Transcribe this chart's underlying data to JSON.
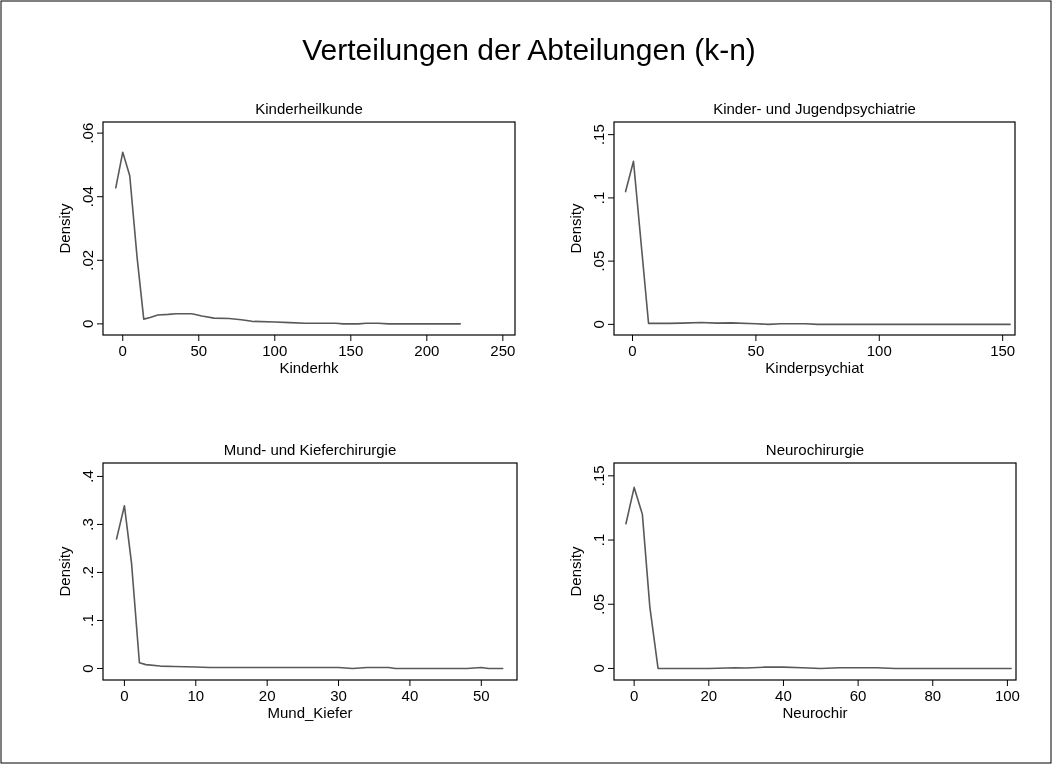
{
  "chart_data": [
    {
      "type": "line",
      "title": "Kinderheilkunde",
      "xlabel": "Kinderhk",
      "ylabel": "Density",
      "annotations": [
        "Verteilungen der Abteilungen (k-n)"
      ],
      "color": "#595959",
      "x": [
        -4.6,
        0,
        4.6,
        9.4,
        13.8,
        18,
        23,
        30,
        35,
        45,
        47,
        52,
        60,
        70,
        78,
        85,
        100,
        110,
        120,
        140,
        145,
        155,
        160,
        168,
        175,
        222
      ],
      "values": [
        0.0428,
        0.054,
        0.0466,
        0.021,
        0.0015,
        0.002,
        0.0028,
        0.003,
        0.0032,
        0.0032,
        0.003,
        0.0025,
        0.0018,
        0.0017,
        0.0013,
        0.0008,
        0.0006,
        0.0004,
        0.0002,
        0.0002,
        0,
        0,
        0.0002,
        0.0002,
        0,
        0
      ],
      "xlim": [
        -13,
        258
      ],
      "ylim": [
        -0.0035,
        0.0635
      ],
      "xticks": [
        0,
        50,
        100,
        150,
        200,
        250
      ],
      "yticks": [
        {
          "value": 0,
          "label": "0"
        },
        {
          "value": 0.02,
          "label": ".02"
        },
        {
          "value": 0.04,
          "label": ".04"
        },
        {
          "value": 0.06,
          "label": ".06"
        }
      ]
    },
    {
      "type": "line",
      "title": "Kinder- und Jugendpsychiatrie",
      "xlabel": "Kinderpsychiat",
      "ylabel": "Density",
      "color": "#595959",
      "x": [
        -2.8,
        0.4,
        6.5,
        15,
        20,
        28,
        34,
        40,
        50,
        55,
        60,
        70,
        75,
        153
      ],
      "values": [
        0.105,
        0.129,
        0.0008,
        0.0008,
        0.001,
        0.0015,
        0.001,
        0.0012,
        0.0005,
        0,
        0.0005,
        0.0005,
        0,
        0
      ],
      "xlim": [
        -7.5,
        155
      ],
      "ylim": [
        -0.0084,
        0.16
      ],
      "xticks": [
        0,
        50,
        100,
        150
      ],
      "yticks": [
        {
          "value": 0,
          "label": "0"
        },
        {
          "value": 0.05,
          "label": ".05"
        },
        {
          "value": 0.1,
          "label": ".1"
        },
        {
          "value": 0.15,
          "label": ".15"
        }
      ]
    },
    {
      "type": "line",
      "title": "Mund- und Kieferchirurgie",
      "xlabel": "Mund_Kiefer",
      "ylabel": "Density",
      "color": "#595959",
      "x": [
        -1.1,
        0,
        1.0,
        2.1,
        3,
        5,
        7,
        10,
        12,
        30,
        32,
        34,
        37,
        38,
        48,
        50,
        51,
        53
      ],
      "values": [
        0.27,
        0.339,
        0.219,
        0.012,
        0.008,
        0.005,
        0.004,
        0.003,
        0.002,
        0.002,
        0,
        0.002,
        0.002,
        0,
        0,
        0.002,
        0,
        0
      ],
      "xlim": [
        -3,
        55
      ],
      "ylim": [
        -0.024,
        0.428
      ],
      "xticks": [
        0,
        10,
        20,
        30,
        40,
        50
      ],
      "yticks": [
        {
          "value": 0,
          "label": "0"
        },
        {
          "value": 0.1,
          "label": ".1"
        },
        {
          "value": 0.2,
          "label": ".2"
        },
        {
          "value": 0.3,
          "label": ".3"
        },
        {
          "value": 0.4,
          "label": ".4"
        }
      ]
    },
    {
      "type": "line",
      "title": "Neurochirurgie",
      "xlabel": "Neurochir",
      "ylabel": "Density",
      "color": "#595959",
      "x": [
        -2.2,
        0,
        2.2,
        4.2,
        6.4,
        20,
        27,
        30,
        35,
        40,
        45,
        50,
        55,
        65,
        70,
        80,
        101
      ],
      "values": [
        0.1127,
        0.141,
        0.12,
        0.048,
        0,
        0,
        0.0005,
        0.0003,
        0.001,
        0.001,
        0.0005,
        0,
        0.0005,
        0.0005,
        0,
        0,
        0
      ],
      "xlim": [
        -5.4,
        102.3
      ],
      "ylim": [
        -0.009,
        0.16
      ],
      "xticks": [
        0,
        20,
        40,
        60,
        80,
        100
      ],
      "yticks": [
        {
          "value": 0,
          "label": "0"
        },
        {
          "value": 0.05,
          "label": ".05"
        },
        {
          "value": 0.1,
          "label": ".1"
        },
        {
          "value": 0.15,
          "label": ".15"
        }
      ]
    }
  ]
}
